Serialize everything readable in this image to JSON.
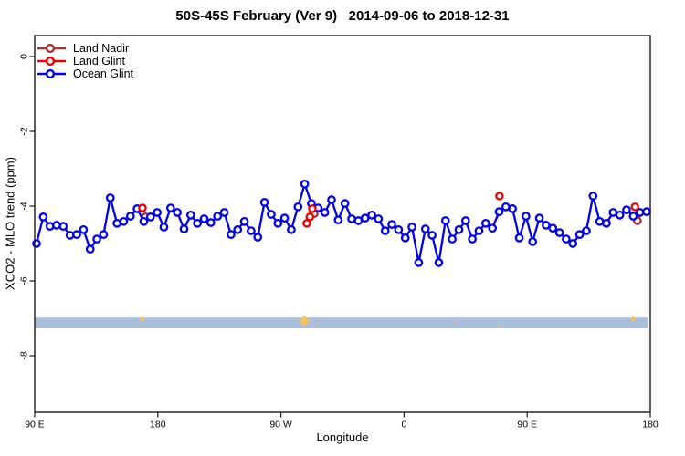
{
  "chart_data": {
    "type": "line",
    "title": "50S-45S February (Ver 9)   2014-09-06 to 2018-12-31",
    "xlabel": "Longitude",
    "ylabel": "XCO2 - MLO trend (ppm)",
    "x_ticks": [
      "90 E",
      "180",
      "90 W",
      "0",
      "90 E",
      "180"
    ],
    "x_axis_note": "longitude wraps eastward from 90E through 180, 90W, 0, 90E to 180; ocean points binned every ~5 degrees",
    "y_ticks": [
      0,
      -2,
      -4,
      -6,
      -8
    ],
    "y_tick_labels": [
      "0",
      "-2",
      "-4",
      "-6",
      "-8"
    ],
    "ylim": [
      -9.5,
      0.56
    ],
    "grid": false,
    "legend_position": "topleft",
    "legend": {
      "entries": [
        {
          "label": "Land Nadir",
          "color": "#A03232"
        },
        {
          "label": "Land Glint",
          "color": "#EE0000"
        },
        {
          "label": "Ocean Glint",
          "color": "#0000EE"
        }
      ]
    },
    "series": [
      {
        "name": "Land Nadir",
        "color": "#A03232",
        "marker": "open-circle",
        "points": [
          {
            "f": 0.18,
            "v": -4.29
          },
          {
            "f": 0.454,
            "v": -4.2
          },
          {
            "f": 0.979,
            "v": -4.39
          }
        ]
      },
      {
        "name": "Land Glint",
        "color": "#EE0000",
        "marker": "open-circle",
        "points": [
          {
            "f": 0.175,
            "v": -4.05
          },
          {
            "f": 0.451,
            "v": -4.07
          },
          {
            "f": 0.447,
            "v": -4.29
          },
          {
            "f": 0.442,
            "v": -4.46
          },
          {
            "f": 0.755,
            "v": -3.73
          },
          {
            "f": 0.975,
            "v": -4.02
          }
        ]
      },
      {
        "name": "Ocean Glint",
        "color": "#0000EE",
        "marker": "open-circle-line",
        "values": [
          -5.0,
          -4.29,
          -4.54,
          -4.51,
          -4.54,
          -4.78,
          -4.76,
          -4.63,
          -5.15,
          -4.88,
          -4.76,
          -3.78,
          -4.46,
          -4.41,
          -4.27,
          -4.07,
          -4.41,
          -4.29,
          -4.17,
          -4.56,
          -4.05,
          -4.17,
          -4.61,
          -4.24,
          -4.46,
          -4.34,
          -4.44,
          -4.27,
          -4.17,
          -4.76,
          -4.63,
          -4.41,
          -4.66,
          -4.83,
          -3.9,
          -4.22,
          -4.46,
          -4.32,
          -4.63,
          -4.02,
          -3.41,
          -3.93,
          -4.05,
          -4.17,
          -3.83,
          -4.37,
          -3.93,
          -4.34,
          -4.39,
          -4.32,
          -4.24,
          -4.34,
          -4.66,
          -4.49,
          -4.63,
          -4.85,
          -4.56,
          -5.51,
          -4.61,
          -4.78,
          -5.51,
          -4.39,
          -4.88,
          -4.63,
          -4.39,
          -4.88,
          -4.66,
          -4.46,
          -4.59,
          -4.15,
          -4.02,
          -4.07,
          -4.85,
          -4.27,
          -4.95,
          -4.32,
          -4.51,
          -4.59,
          -4.71,
          -4.88,
          -5.0,
          -4.76,
          -4.66,
          -3.73,
          -4.41,
          -4.46,
          -4.17,
          -4.24,
          -4.1,
          -4.27,
          -4.17,
          -4.15
        ]
      }
    ],
    "band": {
      "name": "horizontal-band",
      "color": "#A9BFDC",
      "v_top": -6.98,
      "v_bottom": -7.27,
      "marks_color": "#F5C25E",
      "marks": [
        {
          "f": 0.175,
          "v": -7.02,
          "r": 3
        },
        {
          "f": 0.438,
          "v": -7.07,
          "r": 6
        },
        {
          "f": 0.682,
          "v": -7.07,
          "r": 1.6
        },
        {
          "f": 0.754,
          "v": -7.22,
          "r": 1.6
        },
        {
          "f": 0.972,
          "v": -7.02,
          "r": 3.2
        }
      ]
    }
  }
}
